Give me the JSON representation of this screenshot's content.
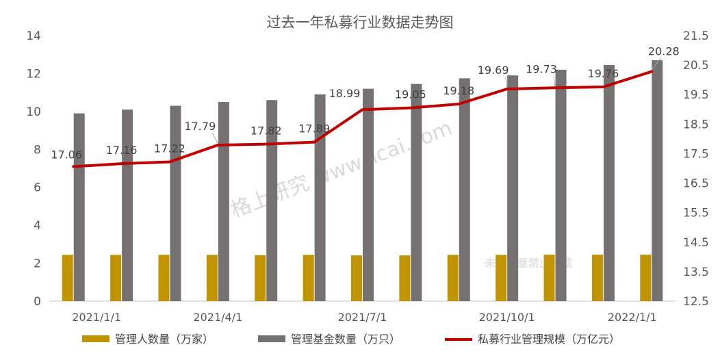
{
  "chart_data": {
    "type": "bar",
    "title": "过去一年私募行业数据走势图",
    "categories": [
      "2021/1/1",
      "2021/2/1",
      "2021/3/1",
      "2021/4/1",
      "2021/5/1",
      "2021/6/1",
      "2021/7/1",
      "2021/8/1",
      "2021/9/1",
      "2021/10/1",
      "2021/11/1",
      "2021/12/1",
      "2022/1/1"
    ],
    "x_tick_labels": [
      "2021/1/1",
      "",
      "",
      "2021/4/1",
      "",
      "",
      "2021/7/1",
      "",
      "",
      "2021/10/1",
      "",
      "",
      "2022/1/1"
    ],
    "series": [
      {
        "name": "管理人数量（万家）",
        "type": "bar",
        "axis": "left",
        "color": "#c09300",
        "values": [
          2.44,
          2.44,
          2.44,
          2.44,
          2.42,
          2.44,
          2.41,
          2.41,
          2.44,
          2.44,
          2.45,
          2.45,
          2.45
        ]
      },
      {
        "name": "管理基金数量（万只）",
        "type": "bar",
        "axis": "left",
        "color": "#767171",
        "values": [
          9.9,
          10.1,
          10.3,
          10.5,
          10.6,
          10.9,
          11.2,
          11.45,
          11.75,
          11.9,
          12.2,
          12.45,
          12.7
        ]
      },
      {
        "name": "私募行业管理规模（万亿元）",
        "type": "line",
        "axis": "right",
        "color": "#c00000",
        "values": [
          17.06,
          17.16,
          17.22,
          17.79,
          17.82,
          17.89,
          18.99,
          19.05,
          19.18,
          19.69,
          19.73,
          19.76,
          20.28
        ],
        "labels": [
          "17.06",
          "17.16",
          "17.22",
          "17.79",
          "17.82",
          "17.89",
          "18.99",
          "19.05",
          "19.18",
          "19.69",
          "19.73",
          "19.76",
          "20.28"
        ]
      }
    ],
    "y_left": {
      "ylim": [
        0,
        14
      ],
      "ticks": [
        "0",
        "2",
        "4",
        "6",
        "8",
        "10",
        "12",
        "14"
      ]
    },
    "y_right": {
      "ylim": [
        12.5,
        21.5
      ],
      "ticks": [
        "12.5",
        "13.5",
        "14.5",
        "15.5",
        "16.5",
        "17.5",
        "18.5",
        "19.5",
        "20.5",
        "21.5"
      ]
    },
    "grid": false,
    "legend_position": "bottom"
  },
  "watermarks": [
    "格上研究  www.licai.com",
    "未经同意禁止转载"
  ]
}
